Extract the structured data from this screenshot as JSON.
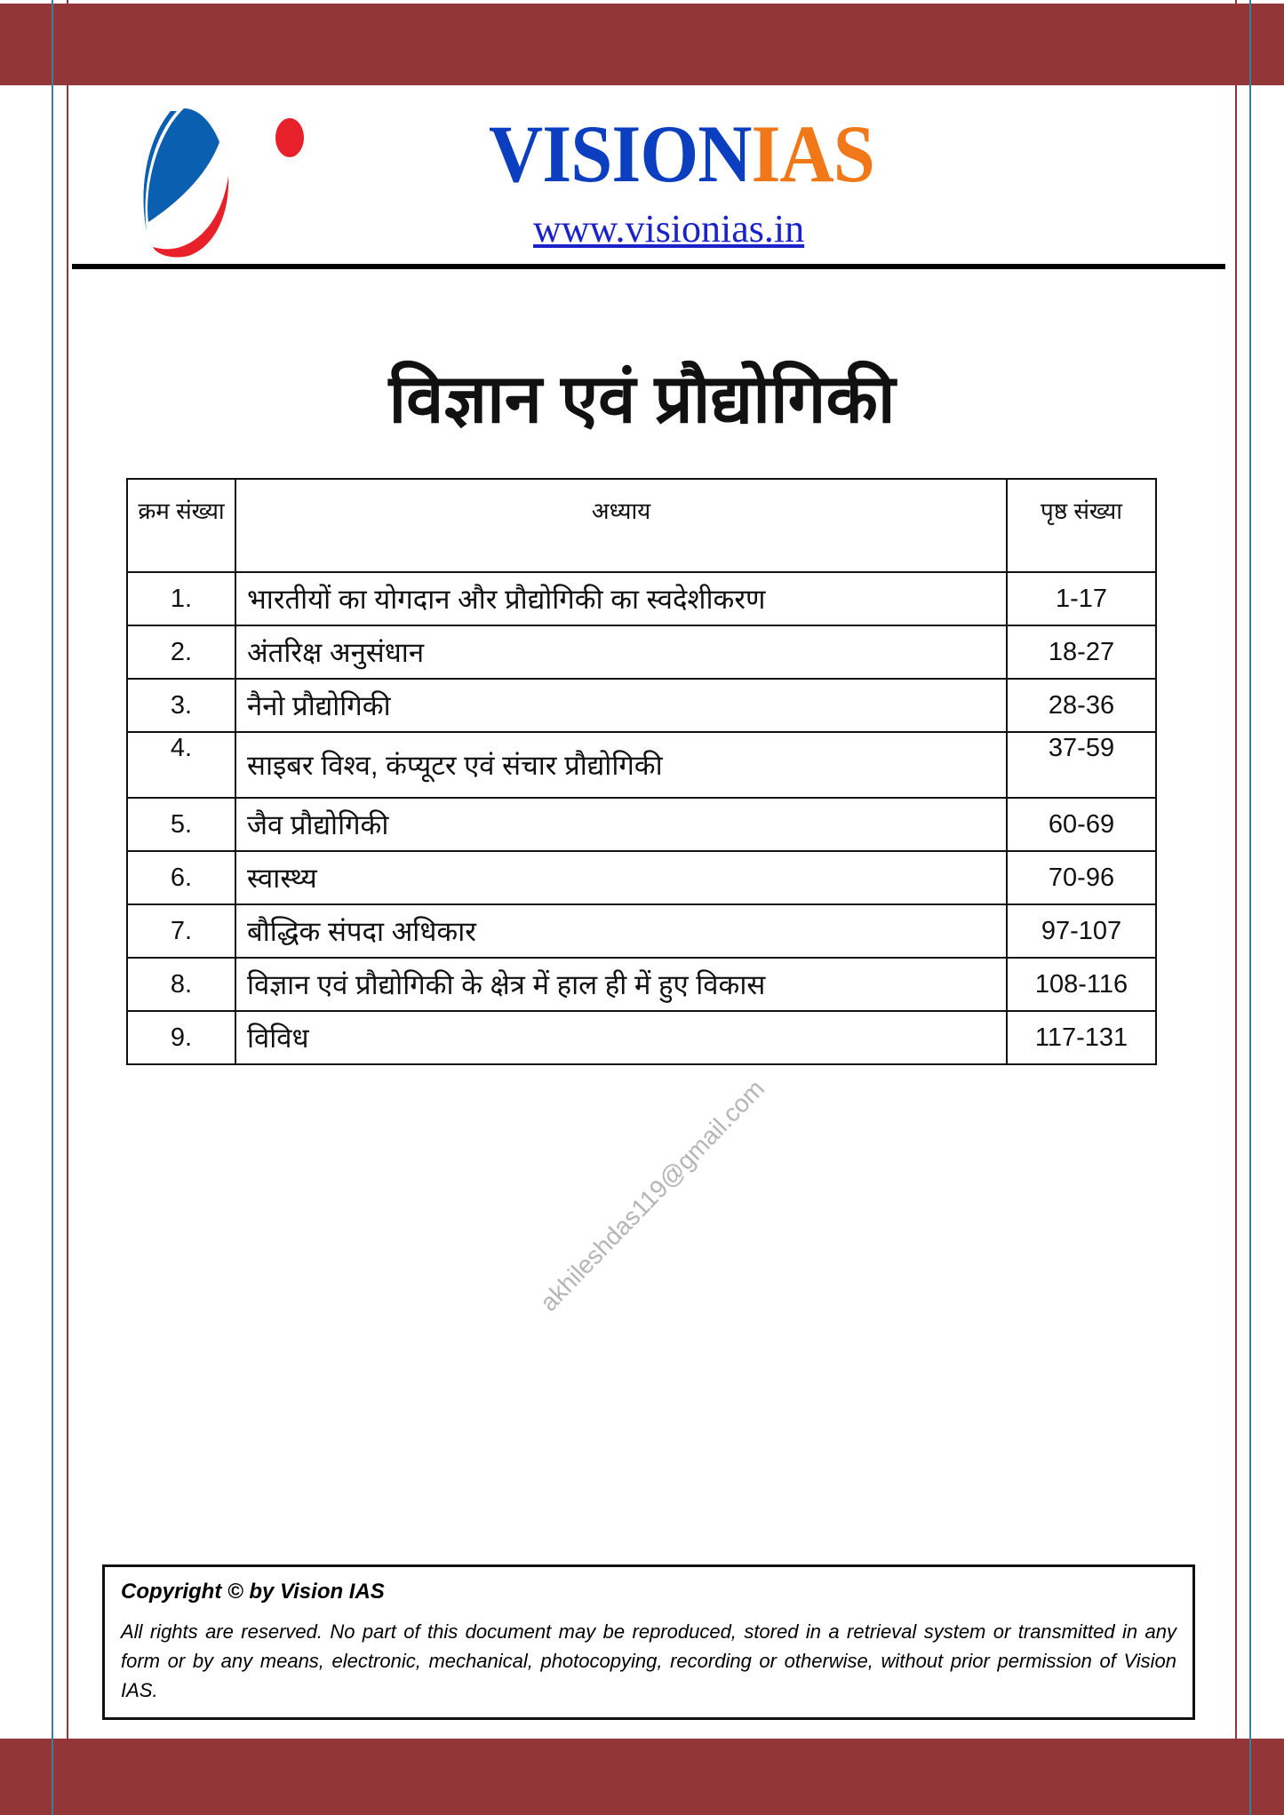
{
  "header": {
    "brand_part1": "VISION",
    "brand_part2": "IAS",
    "url": "www.visionias.in",
    "colors": {
      "band": "#933638",
      "brand_blue": "#0b3fbf",
      "brand_orange": "#f07818",
      "logo_red": "#e8202a",
      "logo_blue": "#0b5fb0"
    }
  },
  "title": "विज्ञान एवं प्रौद्योगिकी",
  "table": {
    "headers": [
      "क्रम संख्या",
      "अध्याय",
      "पृष्ठ संख्या"
    ],
    "rows": [
      {
        "num": "1.",
        "chapter": "भारतीयों का योगदान और प्रौद्योगिकी का स्वदेशीकरण",
        "pages": "1-17"
      },
      {
        "num": "2.",
        "chapter": "अंतरिक्ष अनुसंधान",
        "pages": "18-27"
      },
      {
        "num": "3.",
        "chapter": "नैनो प्रौद्योगिकी",
        "pages": "28-36"
      },
      {
        "num": "4.",
        "chapter": "साइबर विश्व, कंप्यूटर एवं संचार प्रौद्योगिकी",
        "pages": "37-59"
      },
      {
        "num": "5.",
        "chapter": "जैव प्रौद्योगिकी",
        "pages": "60-69"
      },
      {
        "num": "6.",
        "chapter": "स्वास्थ्य",
        "pages": "70-96"
      },
      {
        "num": "7.",
        "chapter": "बौद्धिक संपदा अधिकार",
        "pages": "97-107"
      },
      {
        "num": "8.",
        "chapter": "विज्ञान एवं प्रौद्योगिकी के क्षेत्र में हाल ही में हुए विकास",
        "pages": "108-116"
      },
      {
        "num": "9.",
        "chapter": "विविध",
        "pages": "117-131"
      }
    ]
  },
  "watermark": "akhileshdas119@gmail.com",
  "footer": {
    "copyright": "Copyright © by Vision IAS",
    "notice": "All rights are reserved. No part of this document may be reproduced, stored in a retrieval system or transmitted in any form or by any means, electronic, mechanical, photocopying, recording or otherwise, without prior permission of Vision IAS."
  }
}
